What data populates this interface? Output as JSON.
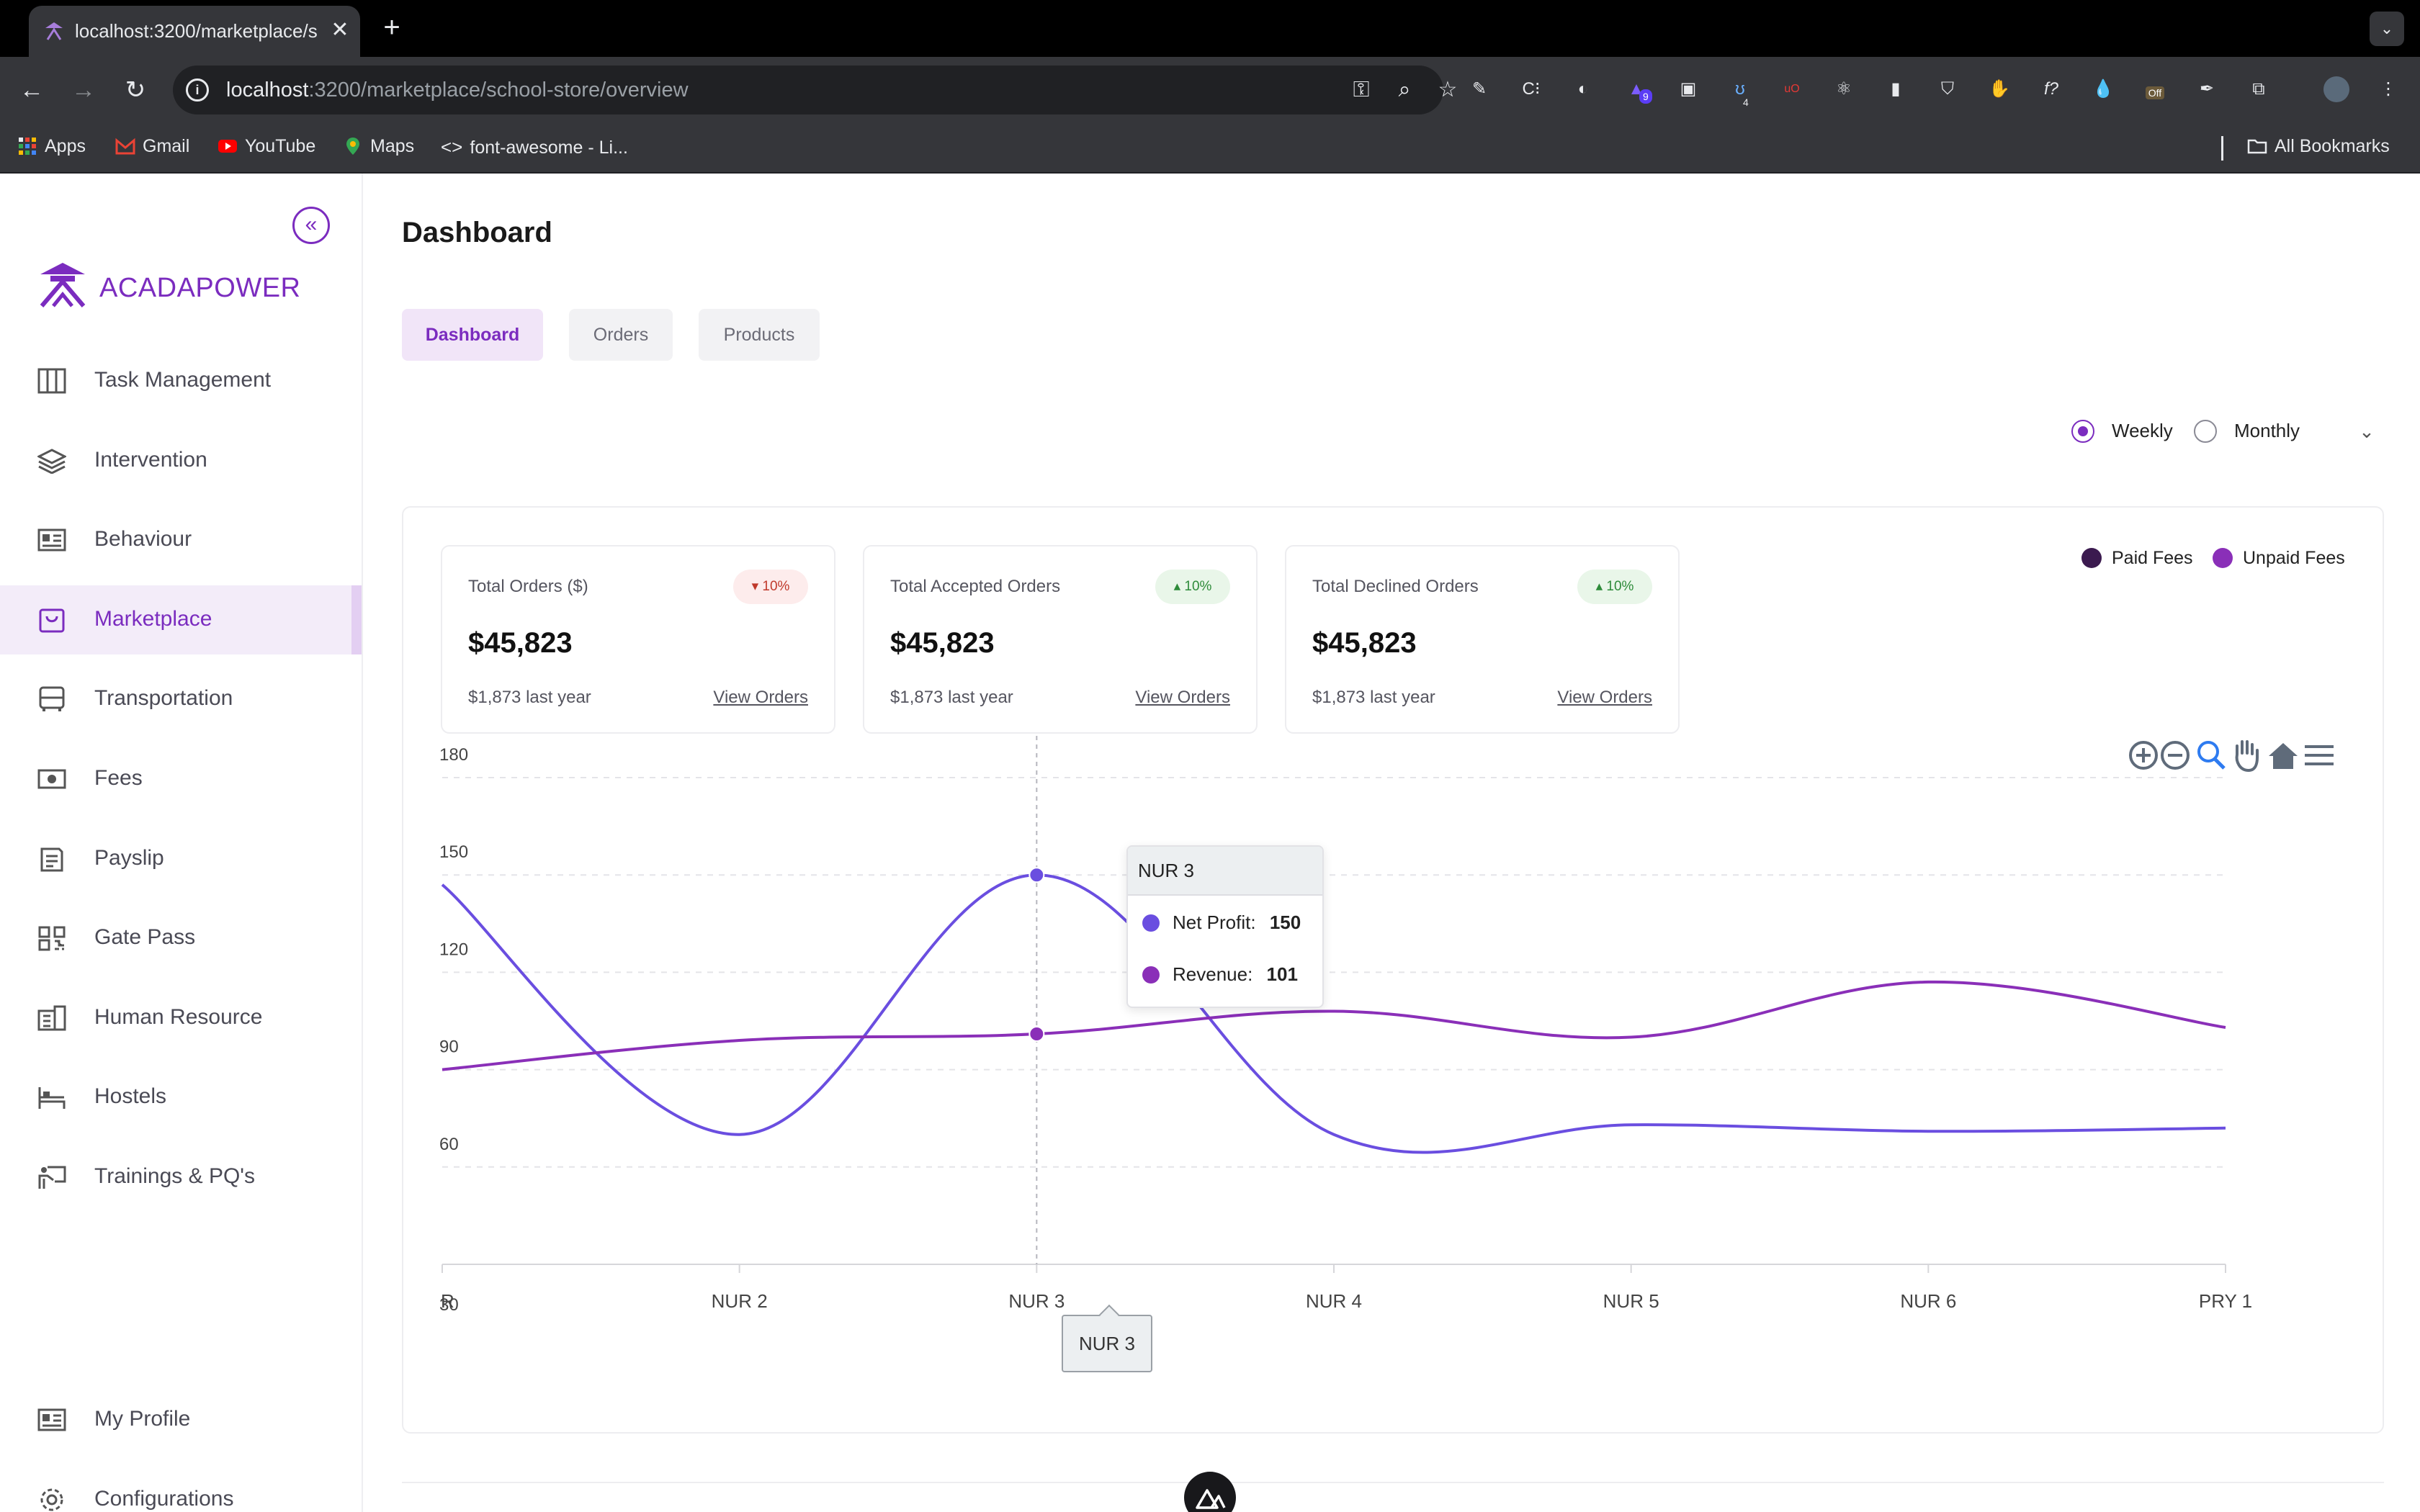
{
  "browser": {
    "tab_title": "localhost:3200/marketplace/s",
    "url_host": "localhost",
    "url_path": ":3200/marketplace/school-store/overview",
    "bookmarks": [
      "Apps",
      "Gmail",
      "YouTube",
      "Maps",
      "font-awesome - Li...",
      "All Bookmarks"
    ],
    "ext_badges": {
      "first": "9",
      "second": "4",
      "off": "Off"
    }
  },
  "brand": {
    "name": "ACADAPOWER",
    "color": "#7b2cbf"
  },
  "sidebar": {
    "items": [
      {
        "label": "Task Management",
        "icon": "columns-icon"
      },
      {
        "label": "Intervention",
        "icon": "layers-icon"
      },
      {
        "label": "Behaviour",
        "icon": "id-card-icon"
      },
      {
        "label": "Marketplace",
        "icon": "shopping-bag-icon",
        "active": true
      },
      {
        "label": "Transportation",
        "icon": "bus-icon"
      },
      {
        "label": "Fees",
        "icon": "money-icon"
      },
      {
        "label": "Payslip",
        "icon": "payslip-icon"
      },
      {
        "label": "Gate Pass",
        "icon": "qr-code-icon"
      },
      {
        "label": "Human Resource",
        "icon": "building-icon"
      },
      {
        "label": "Hostels",
        "icon": "bed-icon"
      },
      {
        "label": "Trainings & PQ's",
        "icon": "presentation-icon"
      }
    ],
    "bottom_items": [
      {
        "label": "My Profile",
        "icon": "profile-card-icon"
      },
      {
        "label": "Configurations",
        "icon": "gear-icon"
      }
    ]
  },
  "page": {
    "title": "Dashboard",
    "tabs": [
      "Dashboard",
      "Orders",
      "Products"
    ],
    "active_tab": "Dashboard",
    "period": {
      "options": [
        "Weekly",
        "Monthly"
      ],
      "selected": "Weekly"
    }
  },
  "cards": [
    {
      "label": "Total Orders ($)",
      "badge": "10%",
      "trend": "down",
      "value": "$45,823",
      "sub": "$1,873 last year",
      "link": "View Orders"
    },
    {
      "label": "Total Accepted Orders",
      "badge": "10%",
      "trend": "up",
      "value": "$45,823",
      "sub": "$1,873 last year",
      "link": "View Orders"
    },
    {
      "label": "Total Declined Orders",
      "badge": "10%",
      "trend": "up",
      "value": "$45,823",
      "sub": "$1,873 last year",
      "link": "View Orders"
    }
  ],
  "legend": [
    {
      "name": "Paid Fees",
      "color": "#3b1a4f"
    },
    {
      "name": "Unpaid Fees",
      "color": "#8a2fb8"
    }
  ],
  "chart_data": {
    "type": "line",
    "categories": [
      "R",
      "NUR 2",
      "NUR 3",
      "NUR 4",
      "NUR 5",
      "NUR 6",
      "PRY 1"
    ],
    "y_ticks": [
      "180",
      "150",
      "120",
      "90",
      "60",
      "30"
    ],
    "ylim": [
      30,
      180
    ],
    "series": [
      {
        "name": "Net Profit",
        "color": "#6a4ee0",
        "values": [
          147,
          70,
          150,
          70,
          73,
          71,
          72
        ]
      },
      {
        "name": "Revenue",
        "color": "#8a2fb8",
        "values": [
          90,
          99,
          101,
          108,
          100,
          117,
          103
        ]
      }
    ],
    "tooltip": {
      "title": "NUR 3",
      "rows": [
        {
          "label": "Net Profit:",
          "value": "150",
          "color": "#6a4ee0"
        },
        {
          "label": "Revenue:",
          "value": "101",
          "color": "#8a2fb8"
        }
      ]
    },
    "x_tooltip": "NUR 3",
    "hover_index": 2
  }
}
